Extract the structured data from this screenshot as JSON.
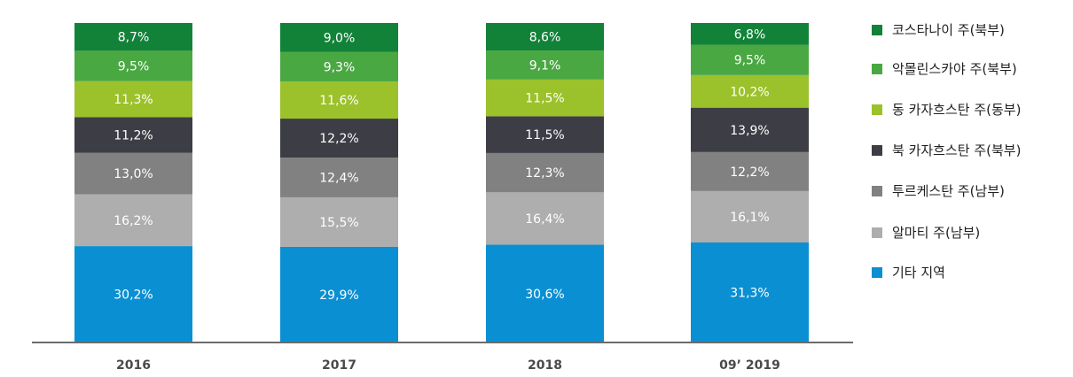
{
  "chart_data": {
    "type": "bar",
    "stacked": true,
    "percent_stacked": true,
    "categories": [
      "2016",
      "2017",
      "2018",
      "09’ 2019"
    ],
    "series": [
      {
        "name": "기타 지역",
        "color": "#0a8fd3",
        "values": [
          30.2,
          29.9,
          30.6,
          31.3
        ],
        "labels": [
          "30,2%",
          "29,9%",
          "30,6%",
          "31,3%"
        ]
      },
      {
        "name": "알마티 주(남부)",
        "color": "#aeaeae",
        "values": [
          16.2,
          15.5,
          16.4,
          16.1
        ],
        "labels": [
          "16,2%",
          "15,5%",
          "16,4%",
          "16,1%"
        ]
      },
      {
        "name": "투르케스탄 주(남부)",
        "color": "#818181",
        "values": [
          13.0,
          12.4,
          12.3,
          12.2
        ],
        "labels": [
          "13,0%",
          "12,4%",
          "12,3%",
          "12,2%"
        ]
      },
      {
        "name": "북 카자흐스탄 주(북부)",
        "color": "#3d3d45",
        "values": [
          11.2,
          12.2,
          11.5,
          13.9
        ],
        "labels": [
          "11,2%",
          "12,2%",
          "11,5%",
          "13,9%"
        ]
      },
      {
        "name": "동 카자흐스탄 주(동부)",
        "color": "#9bc12b",
        "values": [
          11.3,
          11.6,
          11.5,
          10.2
        ],
        "labels": [
          "11,3%",
          "11,6%",
          "11,5%",
          "10,2%"
        ]
      },
      {
        "name": "악몰린스카야 주(북부)",
        "color": "#4aa843",
        "values": [
          9.5,
          9.3,
          9.1,
          9.5
        ],
        "labels": [
          "9,5%",
          "9,3%",
          "9,1%",
          "9,5%"
        ]
      },
      {
        "name": "코스타나이 주(북부)",
        "color": "#128239",
        "values": [
          8.7,
          9.0,
          8.6,
          6.8
        ],
        "labels": [
          "8,7%",
          "9,0%",
          "8,6%",
          "6,8%"
        ]
      }
    ],
    "legend_order": [
      "코스타나이 주(북부)",
      "악몰린스카야 주(북부)",
      "동 카자흐스탄 주(동부)",
      "북 카자흐스탄 주(북부)",
      "투르케스탄 주(남부)",
      "알마티 주(남부)",
      "기타 지역"
    ],
    "legend_position": "right",
    "title": "",
    "xlabel": "",
    "ylabel": "",
    "ylim": [
      0,
      100
    ],
    "grid": false,
    "axis_color": "#6b6b6b"
  }
}
